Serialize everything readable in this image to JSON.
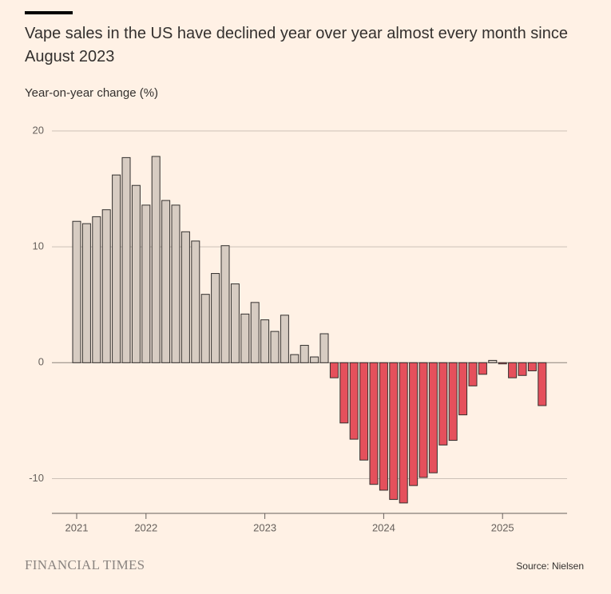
{
  "chart_data": {
    "type": "bar",
    "title": "Vape sales in the US have declined year over year almost every month since August 2023",
    "subtitle": "Year-on-year change (%)",
    "source": "Source: Nielsen",
    "brand": "FINANCIAL TIMES",
    "categories": [
      "2021",
      null,
      null,
      null,
      null,
      null,
      null,
      "2022",
      null,
      null,
      null,
      null,
      null,
      null,
      null,
      null,
      null,
      null,
      null,
      "2023",
      null,
      null,
      null,
      null,
      null,
      null,
      null,
      null,
      null,
      null,
      null,
      "2024",
      null,
      null,
      null,
      null,
      null,
      null,
      null,
      null,
      null,
      null,
      null,
      "2025",
      null,
      null,
      null,
      null
    ],
    "values": [
      12.2,
      12.0,
      12.6,
      13.2,
      16.2,
      17.7,
      15.3,
      13.6,
      17.8,
      14.0,
      13.6,
      11.3,
      10.5,
      5.9,
      7.7,
      10.1,
      6.8,
      4.2,
      5.2,
      3.7,
      2.7,
      4.1,
      0.7,
      1.5,
      0.5,
      2.5,
      -1.3,
      -5.2,
      -6.6,
      -8.4,
      -10.5,
      -11.0,
      -11.8,
      -12.1,
      -10.6,
      -9.9,
      -9.5,
      -7.1,
      -6.7,
      -4.5,
      -2.0,
      -1.0,
      0.2,
      -0.1,
      -1.3,
      -1.1,
      -0.7,
      -3.7
    ],
    "positive_color": "#d7ccc2",
    "negative_color": "#e5505c",
    "ylim": [
      -13,
      20
    ],
    "yticks": [
      -10,
      0,
      10,
      20
    ],
    "grid": true
  }
}
